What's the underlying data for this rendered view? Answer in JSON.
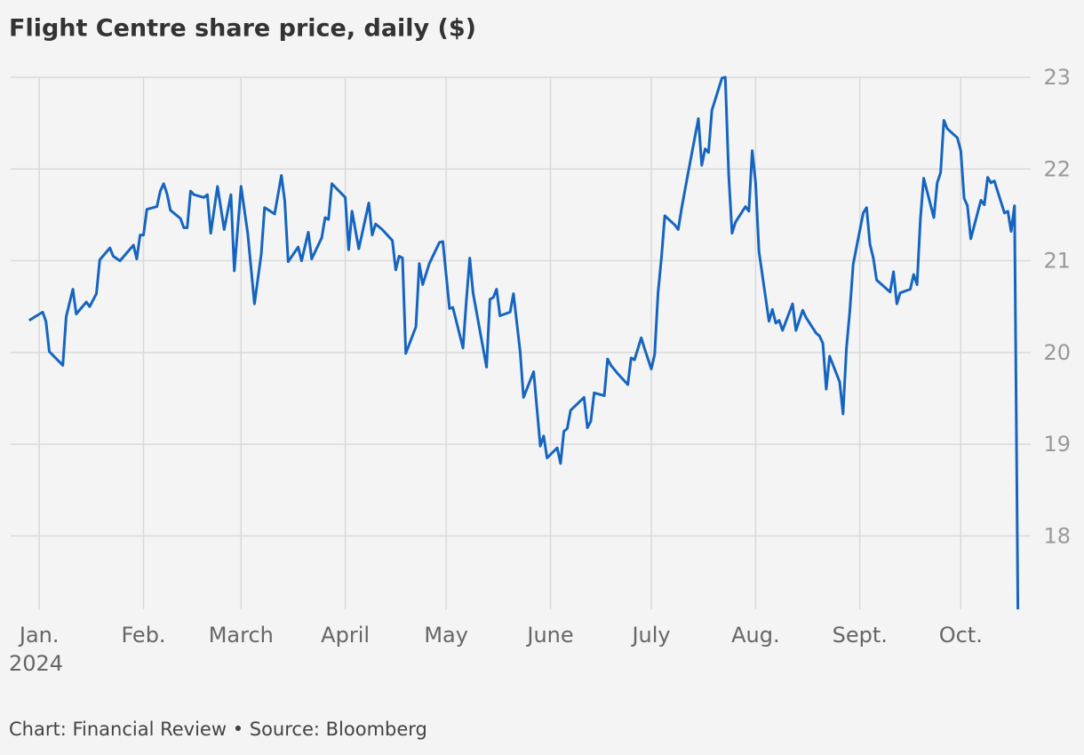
{
  "chart_data": {
    "type": "line",
    "title": "Flight Centre share price, daily ($)",
    "source": "Chart: Financial Review • Source: Bloomberg",
    "x_sublabel": "2024",
    "x": [
      -3,
      1,
      2,
      3,
      7,
      8,
      10,
      11,
      14,
      15,
      17,
      18,
      21,
      22,
      24,
      28,
      29,
      30,
      31,
      32,
      35,
      36,
      37,
      38,
      39,
      42,
      43,
      44,
      45,
      46,
      49,
      50,
      51,
      53,
      55,
      57,
      58,
      60,
      62,
      64,
      66,
      67,
      70,
      72,
      73,
      74,
      77,
      78,
      80,
      81,
      84,
      85,
      86,
      87,
      91,
      92,
      93,
      95,
      98,
      99,
      100,
      102,
      105,
      106,
      107,
      108,
      109,
      112,
      113,
      114,
      116,
      119,
      120,
      122,
      123,
      126,
      127,
      128,
      129,
      133,
      134,
      135,
      136,
      137,
      140,
      141,
      143,
      144,
      147,
      149,
      150,
      151,
      154,
      155,
      156,
      157,
      158,
      162,
      163,
      164,
      165,
      168,
      169,
      170,
      172,
      175,
      176,
      177,
      179,
      180,
      182,
      183,
      184,
      185,
      186,
      189,
      190,
      191,
      193,
      196,
      197,
      198,
      199,
      200,
      203,
      204,
      205,
      206,
      207,
      210,
      211,
      212,
      213,
      214,
      217,
      218,
      219,
      220,
      221,
      224,
      225,
      227,
      228,
      231,
      232,
      233,
      234,
      235,
      238,
      239,
      240,
      241,
      242,
      245,
      246,
      247,
      248,
      249,
      253,
      254,
      255,
      256,
      259,
      260,
      261,
      262,
      263,
      266,
      267,
      268,
      269,
      270,
      273,
      274,
      275,
      276,
      277,
      280,
      281,
      282,
      283,
      284,
      287,
      288,
      289,
      290,
      291
    ],
    "series": [
      {
        "name": "Flight Centre",
        "color": "#1565c0",
        "values": [
          20.35,
          20.44,
          20.34,
          20.01,
          19.86,
          20.39,
          20.69,
          20.42,
          20.55,
          20.5,
          20.64,
          21.01,
          21.14,
          21.05,
          21.0,
          21.17,
          21.02,
          21.28,
          21.28,
          21.56,
          21.59,
          21.76,
          21.84,
          21.73,
          21.55,
          21.46,
          21.36,
          21.36,
          21.76,
          21.72,
          21.69,
          21.72,
          21.3,
          21.81,
          21.34,
          21.72,
          20.89,
          21.81,
          21.3,
          20.53,
          21.07,
          21.58,
          21.51,
          21.93,
          21.65,
          20.99,
          21.15,
          21.0,
          21.31,
          21.02,
          21.25,
          21.47,
          21.45,
          21.84,
          21.69,
          21.12,
          21.54,
          21.13,
          21.63,
          21.28,
          21.4,
          21.34,
          21.22,
          20.9,
          21.05,
          21.03,
          19.99,
          20.28,
          20.97,
          20.74,
          20.97,
          21.2,
          21.21,
          20.48,
          20.49,
          20.05,
          20.57,
          21.03,
          20.65,
          19.84,
          20.58,
          20.6,
          20.69,
          20.4,
          20.44,
          20.64,
          20.01,
          19.51,
          19.79,
          18.98,
          19.09,
          18.85,
          18.96,
          18.79,
          19.14,
          19.17,
          19.37,
          19.51,
          19.18,
          19.25,
          19.56,
          19.53,
          19.93,
          19.86,
          19.77,
          19.65,
          19.94,
          19.92,
          20.16,
          20.04,
          19.82,
          19.98,
          20.65,
          21.03,
          21.49,
          21.39,
          21.34,
          21.57,
          21.97,
          22.55,
          22.04,
          22.22,
          22.18,
          22.64,
          22.99,
          23.0,
          21.94,
          21.3,
          21.42,
          21.59,
          21.54,
          22.2,
          21.85,
          21.1,
          20.34,
          20.47,
          20.32,
          20.35,
          20.24,
          20.53,
          20.24,
          20.46,
          20.38,
          20.21,
          20.18,
          20.1,
          19.6,
          19.96,
          19.68,
          19.33,
          20.04,
          20.45,
          20.96,
          21.52,
          21.58,
          21.18,
          21.03,
          20.79,
          20.66,
          20.88,
          20.53,
          20.65,
          20.69,
          20.85,
          20.74,
          21.46,
          21.9,
          21.47,
          21.85,
          21.96,
          22.53,
          22.44,
          22.34,
          22.2,
          21.68,
          21.6,
          21.24,
          21.66,
          21.61,
          21.91,
          21.85,
          21.87,
          21.52,
          21.54,
          21.32,
          21.6,
          17.2
        ]
      }
    ],
    "xlim": [
      -8.5,
      294.8
    ],
    "xticks": [
      {
        "value": 0,
        "label": "Jan."
      },
      {
        "value": 31,
        "label": "Feb."
      },
      {
        "value": 60,
        "label": "March"
      },
      {
        "value": 91,
        "label": "April"
      },
      {
        "value": 121,
        "label": "May"
      },
      {
        "value": 152,
        "label": "June"
      },
      {
        "value": 182,
        "label": "July"
      },
      {
        "value": 213,
        "label": "Aug."
      },
      {
        "value": 244,
        "label": "Sept."
      },
      {
        "value": 274,
        "label": "Oct."
      }
    ],
    "ylim": [
      17.2,
      23
    ],
    "yticks": [
      18,
      19,
      20,
      21,
      22,
      23
    ],
    "grid": true
  }
}
